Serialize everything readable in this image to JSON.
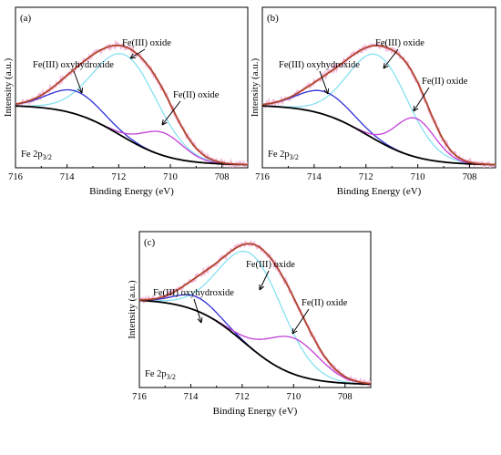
{
  "figure": {
    "panels": [
      {
        "id": "a",
        "label": "(a)",
        "xlabel": "Binding Energy (eV)",
        "ylabel": "Intensity (a.u.)",
        "spectrum": "Fe 2p",
        "subscript": "3/2"
      },
      {
        "id": "b",
        "label": "(b)",
        "xlabel": "Binding Energy (eV)",
        "ylabel": "Intensity (a.u.)",
        "spectrum": "Fe 2p",
        "subscript": "3/2"
      },
      {
        "id": "c",
        "label": "(c)",
        "xlabel": "Binding Energy (eV)",
        "ylabel": "Intensity (a.u.)",
        "spectrum": "Fe 2p",
        "subscript": "3/2"
      }
    ]
  },
  "colors": {
    "raw_data": "#f3bcdc",
    "envelope": "#b0452d",
    "background": "#000000",
    "fe3_oxyhydroxide": "#2f2fd6",
    "fe3_oxide": "#86e0f2",
    "fe2_oxide": "#c23fd8",
    "arrow": "#000000"
  },
  "chart_data": [
    {
      "type": "line",
      "panel": "(a)",
      "xlabel": "Binding Energy (eV)",
      "ylabel": "Intensity (a.u.)",
      "xlim": [
        716,
        707
      ],
      "x_reversed": true,
      "xticks": [
        716,
        714,
        712,
        710,
        708
      ],
      "y_ticks_shown": false,
      "ylim": [
        0,
        1
      ],
      "background": {
        "left": 0.42,
        "right": 0.0
      },
      "peaks": [
        {
          "name": "Fe(III) oxyhydroxide",
          "center": 713.7,
          "height": 0.16,
          "fwhm": 2.4
        },
        {
          "name": "Fe(III) oxide",
          "center": 711.7,
          "height": 0.58,
          "fwhm": 2.9
        },
        {
          "name": "Fe(II) oxide",
          "center": 710.3,
          "height": 0.16,
          "fwhm": 1.9
        }
      ],
      "annotations": [
        {
          "text": "Fe(III) oxyhydroxide",
          "target_x": 713.7
        },
        {
          "text": "Fe(III) oxide",
          "target_x": 711.7
        },
        {
          "text": "Fe(II) oxide",
          "target_x": 710.3
        }
      ]
    },
    {
      "type": "line",
      "panel": "(b)",
      "xlabel": "Binding Energy (eV)",
      "ylabel": "Intensity (a.u.)",
      "xlim": [
        716,
        707
      ],
      "x_reversed": true,
      "xticks": [
        716,
        714,
        712,
        710,
        708
      ],
      "y_ticks_shown": false,
      "ylim": [
        0,
        1
      ],
      "background": {
        "left": 0.42,
        "right": 0.0
      },
      "peaks": [
        {
          "name": "Fe(III) oxyhydroxide",
          "center": 713.6,
          "height": 0.16,
          "fwhm": 2.4
        },
        {
          "name": "Fe(III) oxide",
          "center": 711.5,
          "height": 0.6,
          "fwhm": 2.7
        },
        {
          "name": "Fe(II) oxide",
          "center": 710.1,
          "height": 0.27,
          "fwhm": 1.8
        }
      ],
      "annotations": [
        {
          "text": "Fe(III) oxyhydroxide",
          "target_x": 713.6
        },
        {
          "text": "Fe(III) oxide",
          "target_x": 711.5
        },
        {
          "text": "Fe(II) oxide",
          "target_x": 710.1
        }
      ]
    },
    {
      "type": "line",
      "panel": "(c)",
      "xlabel": "Binding Energy (eV)",
      "ylabel": "Intensity (a.u.)",
      "xlim": [
        716,
        707
      ],
      "x_reversed": true,
      "xticks": [
        716,
        714,
        712,
        710,
        708
      ],
      "y_ticks_shown": false,
      "ylim": [
        0,
        1
      ],
      "background": {
        "left": 0.62,
        "right": 0.0
      },
      "peaks": [
        {
          "name": "Fe(III) oxyhydroxide",
          "center": 713.8,
          "height": 0.1,
          "fwhm": 1.9
        },
        {
          "name": "Fe(III) oxide",
          "center": 711.6,
          "height": 0.68,
          "fwhm": 2.9
        },
        {
          "name": "Fe(II) oxide",
          "center": 710.0,
          "height": 0.26,
          "fwhm": 2.4
        }
      ],
      "annotations": [
        {
          "text": "Fe(III) oxyhydroxide",
          "target_x": 713.8
        },
        {
          "text": "Fe(III) oxide",
          "target_x": 711.6
        },
        {
          "text": "Fe(II) oxide",
          "target_x": 710.0
        }
      ]
    }
  ]
}
